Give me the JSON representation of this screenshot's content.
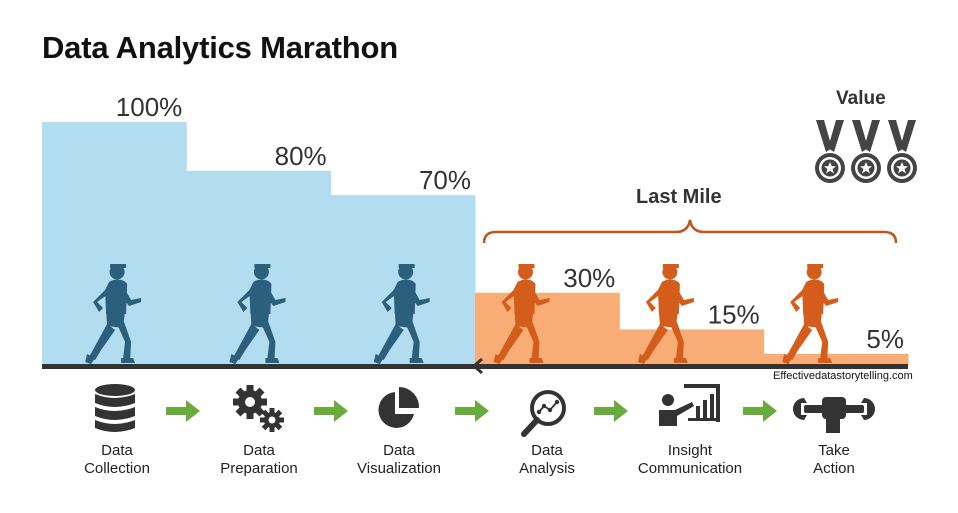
{
  "title": "Data Analytics Marathon",
  "value_label": "Value",
  "last_mile_label": "Last Mile",
  "credit": "Effectivedatastorytelling.com",
  "colors": {
    "blue": "#b2dcef",
    "orange": "#f8ad77",
    "runner_blue": "#2c5f7c",
    "runner_orange": "#d45d1c",
    "arrow_green": "#6aac3c",
    "bracket": "#c0561c",
    "icon": "#333333"
  },
  "chart_data": {
    "type": "bar",
    "categories": [
      "Data Collection",
      "Data Preparation",
      "Data Visualization",
      "Data Analysis",
      "Insight Communication",
      "Take Action"
    ],
    "values": [
      100,
      80,
      70,
      30,
      15,
      5
    ],
    "value_labels": [
      "100%",
      "80%",
      "70%",
      "30%",
      "15%",
      "5%"
    ],
    "ylim": [
      0,
      100
    ]
  },
  "stages": [
    {
      "line1": "Data",
      "line2": "Collection",
      "icon": "database-icon"
    },
    {
      "line1": "Data",
      "line2": "Preparation",
      "icon": "gears-icon"
    },
    {
      "line1": "Data",
      "line2": "Visualization",
      "icon": "pie-chart-icon"
    },
    {
      "line1": "Data",
      "line2": "Analysis",
      "icon": "magnifier-chart-icon"
    },
    {
      "line1": "Insight",
      "line2": "Communication",
      "icon": "presenter-icon"
    },
    {
      "line1": "Take",
      "line2": "Action",
      "icon": "fist-wrench-icon"
    }
  ]
}
